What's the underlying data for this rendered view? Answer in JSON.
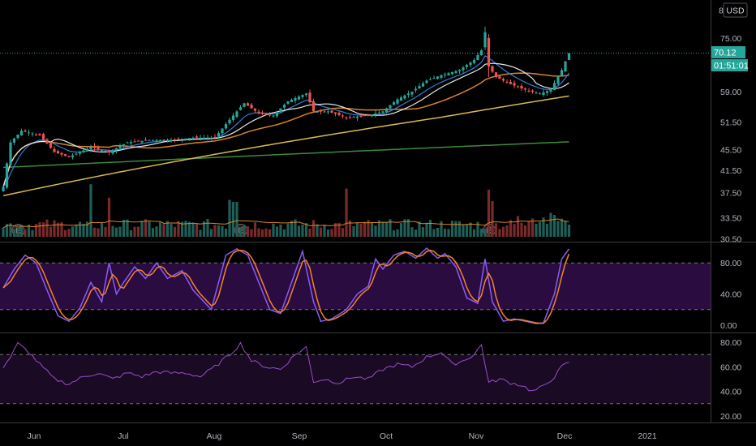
{
  "currency": "USD",
  "last_price": "70.12",
  "countdown": "01:51:01",
  "earnings_marker": "E",
  "colors": {
    "up": "#26a69a",
    "down": "#ef5350",
    "ema_white": "#e8e8e8",
    "ema_blue": "#2f7fd8",
    "sma_orange": "#d8842a",
    "sma_yellow": "#d9b94a",
    "sma_green": "#3c8a3c",
    "vol_ma": "#d8842a",
    "stoch_k": "#8a5cf6",
    "stoch_d": "#f5832a",
    "stoch_band": "#2a0c40",
    "rsi": "#9b4dca",
    "rsi_band": "#1a0a24",
    "price_badge": "#26a69a"
  },
  "chart_data": [
    {
      "type": "candlestick",
      "pane": "price",
      "y_ticks": [
        "75.00",
        "70.12",
        "59.00",
        "51.50",
        "45.50",
        "41.50",
        "37.50",
        "33.50",
        "30.50"
      ],
      "y_top_partial_label": "8",
      "x_ticks": [
        "Jun",
        "Jul",
        "Aug",
        "Sep",
        "Oct",
        "Nov",
        "Dec",
        "2021"
      ],
      "earnings_dates_index": [
        3,
        64,
        132
      ],
      "close_anchors": [
        {
          "i": 0,
          "v": 38.5
        },
        {
          "i": 2,
          "v": 47
        },
        {
          "i": 5,
          "v": 49.5
        },
        {
          "i": 10,
          "v": 48.5
        },
        {
          "i": 14,
          "v": 45
        },
        {
          "i": 18,
          "v": 44
        },
        {
          "i": 24,
          "v": 46
        },
        {
          "i": 29,
          "v": 45
        },
        {
          "i": 34,
          "v": 47
        },
        {
          "i": 40,
          "v": 47.5
        },
        {
          "i": 46,
          "v": 47.5
        },
        {
          "i": 52,
          "v": 48
        },
        {
          "i": 58,
          "v": 48
        },
        {
          "i": 62,
          "v": 52
        },
        {
          "i": 66,
          "v": 56
        },
        {
          "i": 70,
          "v": 53.5
        },
        {
          "i": 74,
          "v": 53
        },
        {
          "i": 78,
          "v": 56.5
        },
        {
          "i": 83,
          "v": 58.5
        },
        {
          "i": 85,
          "v": 54
        },
        {
          "i": 89,
          "v": 54
        },
        {
          "i": 94,
          "v": 52.5
        },
        {
          "i": 100,
          "v": 53
        },
        {
          "i": 104,
          "v": 54
        },
        {
          "i": 108,
          "v": 57
        },
        {
          "i": 112,
          "v": 59
        },
        {
          "i": 116,
          "v": 62
        },
        {
          "i": 120,
          "v": 63.5
        },
        {
          "i": 125,
          "v": 65
        },
        {
          "i": 129,
          "v": 68
        },
        {
          "i": 131,
          "v": 71
        },
        {
          "i": 132,
          "v": 76
        },
        {
          "i": 133,
          "v": 66
        },
        {
          "i": 135,
          "v": 63
        },
        {
          "i": 139,
          "v": 61
        },
        {
          "i": 143,
          "v": 59.5
        },
        {
          "i": 147,
          "v": 58.5
        },
        {
          "i": 150,
          "v": 59.5
        },
        {
          "i": 153,
          "v": 65
        },
        {
          "i": 155,
          "v": 70.12
        }
      ],
      "volume_spikes_index": [
        24,
        29,
        62,
        63,
        64,
        94,
        133,
        134
      ]
    },
    {
      "type": "line",
      "pane": "stochastic",
      "y_ticks": [
        "80.00",
        "40.00",
        "0.00"
      ],
      "band": [
        20,
        80
      ],
      "k_anchors": [
        {
          "i": 0,
          "v": 48
        },
        {
          "i": 3,
          "v": 72
        },
        {
          "i": 6,
          "v": 90
        },
        {
          "i": 9,
          "v": 80
        },
        {
          "i": 12,
          "v": 45
        },
        {
          "i": 15,
          "v": 12
        },
        {
          "i": 18,
          "v": 5
        },
        {
          "i": 21,
          "v": 22
        },
        {
          "i": 24,
          "v": 55
        },
        {
          "i": 27,
          "v": 30
        },
        {
          "i": 29,
          "v": 80
        },
        {
          "i": 31,
          "v": 40
        },
        {
          "i": 33,
          "v": 55
        },
        {
          "i": 36,
          "v": 75
        },
        {
          "i": 39,
          "v": 60
        },
        {
          "i": 42,
          "v": 80
        },
        {
          "i": 45,
          "v": 60
        },
        {
          "i": 49,
          "v": 70
        },
        {
          "i": 52,
          "v": 45
        },
        {
          "i": 55,
          "v": 30
        },
        {
          "i": 57,
          "v": 20
        },
        {
          "i": 61,
          "v": 90
        },
        {
          "i": 64,
          "v": 98
        },
        {
          "i": 67,
          "v": 90
        },
        {
          "i": 70,
          "v": 55
        },
        {
          "i": 73,
          "v": 20
        },
        {
          "i": 76,
          "v": 15
        },
        {
          "i": 79,
          "v": 55
        },
        {
          "i": 82,
          "v": 95
        },
        {
          "i": 85,
          "v": 30
        },
        {
          "i": 87,
          "v": 5
        },
        {
          "i": 90,
          "v": 8
        },
        {
          "i": 94,
          "v": 20
        },
        {
          "i": 97,
          "v": 40
        },
        {
          "i": 100,
          "v": 50
        },
        {
          "i": 102,
          "v": 85
        },
        {
          "i": 104,
          "v": 72
        },
        {
          "i": 107,
          "v": 90
        },
        {
          "i": 110,
          "v": 95
        },
        {
          "i": 113,
          "v": 86
        },
        {
          "i": 116,
          "v": 99
        },
        {
          "i": 119,
          "v": 86
        },
        {
          "i": 121,
          "v": 92
        },
        {
          "i": 124,
          "v": 75
        },
        {
          "i": 127,
          "v": 35
        },
        {
          "i": 130,
          "v": 28
        },
        {
          "i": 132,
          "v": 85
        },
        {
          "i": 134,
          "v": 30
        },
        {
          "i": 137,
          "v": 5
        },
        {
          "i": 140,
          "v": 8
        },
        {
          "i": 143,
          "v": 5
        },
        {
          "i": 146,
          "v": 2
        },
        {
          "i": 148,
          "v": 3
        },
        {
          "i": 151,
          "v": 40
        },
        {
          "i": 153,
          "v": 85
        },
        {
          "i": 155,
          "v": 98
        }
      ]
    },
    {
      "type": "line",
      "pane": "rsi",
      "y_ticks": [
        "80.00",
        "60.00",
        "40.00",
        "20.00"
      ],
      "band": [
        30,
        70
      ],
      "anchors": [
        {
          "i": 0,
          "v": 60
        },
        {
          "i": 2,
          "v": 68
        },
        {
          "i": 4,
          "v": 79
        },
        {
          "i": 7,
          "v": 72
        },
        {
          "i": 10,
          "v": 62
        },
        {
          "i": 14,
          "v": 50
        },
        {
          "i": 18,
          "v": 46
        },
        {
          "i": 22,
          "v": 52
        },
        {
          "i": 26,
          "v": 55
        },
        {
          "i": 30,
          "v": 50
        },
        {
          "i": 34,
          "v": 55
        },
        {
          "i": 38,
          "v": 52
        },
        {
          "i": 42,
          "v": 56
        },
        {
          "i": 46,
          "v": 55
        },
        {
          "i": 50,
          "v": 55
        },
        {
          "i": 54,
          "v": 52
        },
        {
          "i": 58,
          "v": 60
        },
        {
          "i": 62,
          "v": 70
        },
        {
          "i": 65,
          "v": 79
        },
        {
          "i": 68,
          "v": 65
        },
        {
          "i": 72,
          "v": 60
        },
        {
          "i": 76,
          "v": 58
        },
        {
          "i": 80,
          "v": 70
        },
        {
          "i": 83,
          "v": 76
        },
        {
          "i": 85,
          "v": 48
        },
        {
          "i": 88,
          "v": 50
        },
        {
          "i": 92,
          "v": 47
        },
        {
          "i": 96,
          "v": 52
        },
        {
          "i": 100,
          "v": 50
        },
        {
          "i": 104,
          "v": 58
        },
        {
          "i": 108,
          "v": 62
        },
        {
          "i": 112,
          "v": 60
        },
        {
          "i": 116,
          "v": 68
        },
        {
          "i": 120,
          "v": 72
        },
        {
          "i": 123,
          "v": 62
        },
        {
          "i": 126,
          "v": 65
        },
        {
          "i": 129,
          "v": 70
        },
        {
          "i": 131,
          "v": 78
        },
        {
          "i": 133,
          "v": 47
        },
        {
          "i": 136,
          "v": 50
        },
        {
          "i": 139,
          "v": 47
        },
        {
          "i": 142,
          "v": 45
        },
        {
          "i": 145,
          "v": 40
        },
        {
          "i": 148,
          "v": 44
        },
        {
          "i": 151,
          "v": 52
        },
        {
          "i": 153,
          "v": 60
        },
        {
          "i": 155,
          "v": 64
        }
      ]
    }
  ]
}
